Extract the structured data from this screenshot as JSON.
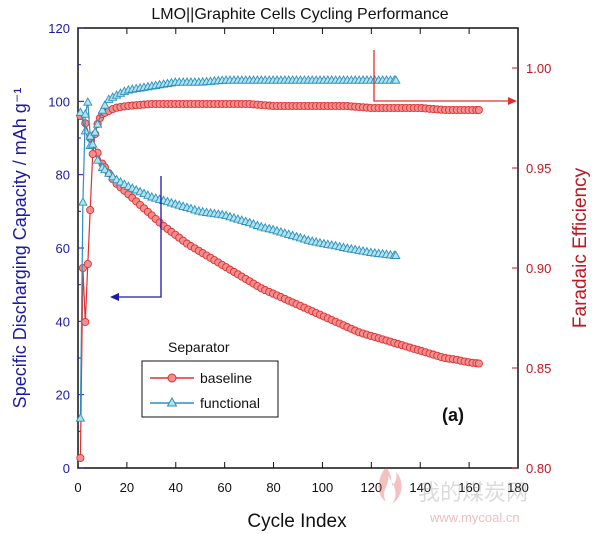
{
  "chart_data": {
    "type": "scatter",
    "title": "LMO||Graphite Cells Cycling Performance",
    "xlabel": "Cycle Index",
    "ylabel_left": "Specific Discharging Capacity / mAh g⁻¹",
    "ylabel_right": "Faradaic Efficiency",
    "panel_label": "(a)",
    "xlim": [
      0,
      180
    ],
    "ylim_left": [
      0,
      120
    ],
    "ylim_right": [
      0.8,
      1.02
    ],
    "x_ticks": [
      "0",
      "20",
      "40",
      "60",
      "80",
      "100",
      "120",
      "140",
      "160",
      "180"
    ],
    "y_left_ticks": [
      "0",
      "20",
      "40",
      "60",
      "80",
      "100",
      "120"
    ],
    "y_right_ticks": [
      "0.80",
      "0.85",
      "0.90",
      "0.95",
      "1.00"
    ],
    "legend": {
      "title": "Separator",
      "placement": "lower-left",
      "entries": [
        "baseline",
        "functional"
      ]
    },
    "series": [
      {
        "name": "baseline",
        "axis": "left",
        "color": "#e03030",
        "marker": "circle",
        "points": [
          [
            1,
            96
          ],
          [
            3,
            94
          ],
          [
            5,
            90
          ],
          [
            8,
            86
          ],
          [
            10,
            83
          ],
          [
            15,
            78
          ],
          [
            20,
            75
          ],
          [
            25,
            72
          ],
          [
            30,
            69
          ],
          [
            35,
            66
          ],
          [
            40,
            63.5
          ],
          [
            45,
            61
          ],
          [
            50,
            59
          ],
          [
            55,
            57
          ],
          [
            60,
            55
          ],
          [
            65,
            53
          ],
          [
            70,
            51
          ],
          [
            75,
            49
          ],
          [
            80,
            47.5
          ],
          [
            85,
            46
          ],
          [
            90,
            44.5
          ],
          [
            95,
            43
          ],
          [
            100,
            41.5
          ],
          [
            105,
            40
          ],
          [
            110,
            38.5
          ],
          [
            115,
            37
          ],
          [
            120,
            36
          ],
          [
            125,
            35
          ],
          [
            130,
            34
          ],
          [
            135,
            33
          ],
          [
            140,
            32
          ],
          [
            145,
            31
          ],
          [
            150,
            30
          ],
          [
            155,
            29.5
          ],
          [
            160,
            28.8
          ],
          [
            164,
            28.5
          ]
        ]
      },
      {
        "name": "functional",
        "axis": "left",
        "color": "#2e8fbd",
        "marker": "triangle",
        "points": [
          [
            1,
            97
          ],
          [
            3,
            92
          ],
          [
            5,
            88
          ],
          [
            8,
            84
          ],
          [
            10,
            82
          ],
          [
            15,
            79
          ],
          [
            20,
            77
          ],
          [
            25,
            75.5
          ],
          [
            30,
            74
          ],
          [
            35,
            73
          ],
          [
            40,
            72
          ],
          [
            45,
            71
          ],
          [
            50,
            70
          ],
          [
            55,
            69.5
          ],
          [
            60,
            69
          ],
          [
            65,
            68
          ],
          [
            70,
            67
          ],
          [
            75,
            65.8
          ],
          [
            80,
            65
          ],
          [
            85,
            64
          ],
          [
            90,
            63
          ],
          [
            95,
            62
          ],
          [
            100,
            61.3
          ],
          [
            105,
            60.7
          ],
          [
            110,
            60
          ],
          [
            115,
            59.4
          ],
          [
            120,
            58.8
          ],
          [
            125,
            58.4
          ],
          [
            130,
            58
          ]
        ]
      },
      {
        "name": "baseline",
        "axis": "right",
        "color": "#e03030",
        "marker": "circle",
        "points": [
          [
            1,
            0.805
          ],
          [
            2,
            0.9
          ],
          [
            3,
            0.873
          ],
          [
            4,
            0.902
          ],
          [
            5,
            0.929
          ],
          [
            6,
            0.957
          ],
          [
            7,
            0.967
          ],
          [
            8,
            0.972
          ],
          [
            9,
            0.975
          ],
          [
            10,
            0.977
          ],
          [
            15,
            0.98
          ],
          [
            20,
            0.981
          ],
          [
            30,
            0.982
          ],
          [
            40,
            0.982
          ],
          [
            50,
            0.982
          ],
          [
            60,
            0.982
          ],
          [
            70,
            0.982
          ],
          [
            80,
            0.981
          ],
          [
            90,
            0.981
          ],
          [
            100,
            0.981
          ],
          [
            110,
            0.981
          ],
          [
            120,
            0.98
          ],
          [
            130,
            0.98
          ],
          [
            140,
            0.98
          ],
          [
            150,
            0.979
          ],
          [
            160,
            0.979
          ],
          [
            164,
            0.979
          ]
        ]
      },
      {
        "name": "functional",
        "axis": "right",
        "color": "#2e8fbd",
        "marker": "triangle",
        "points": [
          [
            1,
            0.825
          ],
          [
            2,
            0.933
          ],
          [
            3,
            0.977
          ],
          [
            4,
            0.983
          ],
          [
            5,
            0.966
          ],
          [
            6,
            0.962
          ],
          [
            7,
            0.968
          ],
          [
            8,
            0.972
          ],
          [
            10,
            0.979
          ],
          [
            12,
            0.984
          ],
          [
            15,
            0.986
          ],
          [
            20,
            0.989
          ],
          [
            30,
            0.991
          ],
          [
            40,
            0.993
          ],
          [
            50,
            0.993
          ],
          [
            60,
            0.994
          ],
          [
            70,
            0.994
          ],
          [
            80,
            0.994
          ],
          [
            90,
            0.994
          ],
          [
            100,
            0.994
          ],
          [
            110,
            0.994
          ],
          [
            120,
            0.994
          ],
          [
            130,
            0.994
          ]
        ]
      }
    ],
    "annotations": [
      {
        "type": "arrow",
        "target_axis": "left",
        "color": "#1a1aa6"
      },
      {
        "type": "arrow",
        "target_axis": "right",
        "color": "#e03030"
      }
    ],
    "colors": {
      "left_axis": "#1a1aa6",
      "right_axis": "#c0181e",
      "baseline": "#e03030",
      "functional": "#2e8fbd"
    }
  },
  "watermark": {
    "site_cn": "我的煤炭网",
    "url": "www.mycoal.cn"
  }
}
